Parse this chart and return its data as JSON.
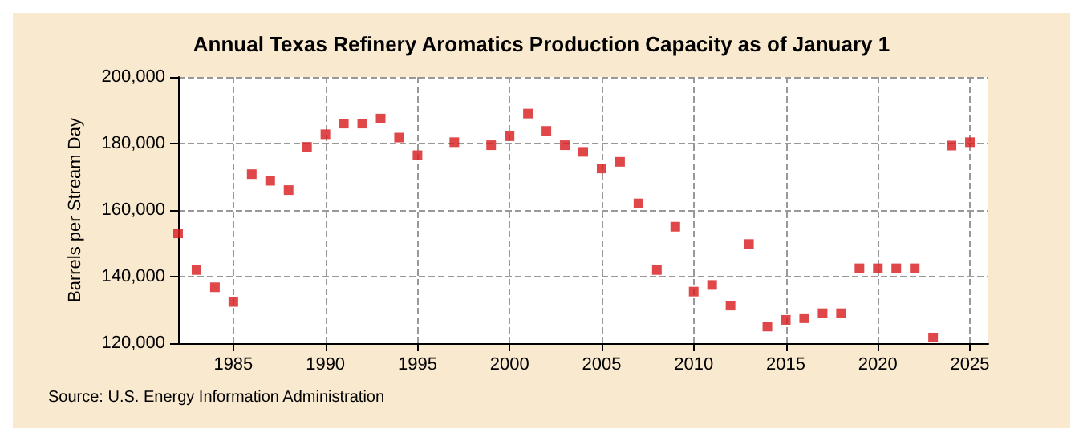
{
  "chart_data": {
    "type": "scatter",
    "title": "Annual Texas Refinery Aromatics Production Capacity as of January 1",
    "ylabel": "Barrels per Stream Day",
    "annotations": [
      "Source: U.S. Energy Information Administration"
    ],
    "x": [
      1982,
      1983,
      1984,
      1985,
      1986,
      1987,
      1988,
      1989,
      1990,
      1991,
      1992,
      1993,
      1994,
      1995,
      1997,
      1999,
      2000,
      2001,
      2002,
      2003,
      2004,
      2005,
      2006,
      2007,
      2008,
      2009,
      2010,
      2011,
      2012,
      2013,
      2014,
      2015,
      2016,
      2017,
      2018,
      2019,
      2020,
      2021,
      2022,
      2023,
      2024,
      2025
    ],
    "series": [
      {
        "color": "#d7191c",
        "values": [
          153000,
          142000,
          136800,
          132400,
          170800,
          168800,
          166000,
          179000,
          182800,
          186000,
          186000,
          187500,
          181800,
          176500,
          180400,
          179500,
          182200,
          189000,
          183800,
          179500,
          177500,
          172500,
          174500,
          162000,
          142000,
          155000,
          135500,
          137500,
          131300,
          149800,
          125000,
          127000,
          127500,
          129000,
          129000,
          142500,
          142500,
          142500,
          142500,
          121700,
          179400,
          180400
        ]
      }
    ],
    "xlim": [
      1982,
      2026
    ],
    "xticks": [
      1985,
      1990,
      1995,
      2000,
      2005,
      2010,
      2015,
      2020,
      2025
    ],
    "ylim": [
      120000,
      200000
    ],
    "yticks": [
      {
        "value": 120000,
        "label": "120,000"
      },
      {
        "value": 140000,
        "label": "140,000"
      },
      {
        "value": 160000,
        "label": "160,000"
      },
      {
        "value": 180000,
        "label": "180,000"
      },
      {
        "value": 200000,
        "label": "200,000"
      }
    ],
    "grid": true,
    "marker": "square"
  }
}
